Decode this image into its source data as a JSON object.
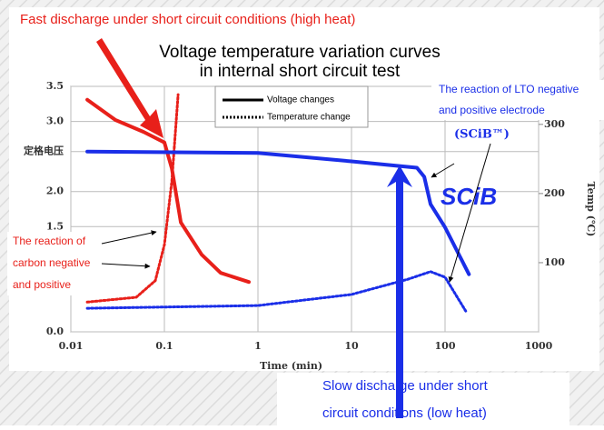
{
  "chart_data": {
    "type": "line",
    "title": [
      "Voltage temperature variation curves",
      "in internal short circuit test"
    ],
    "xlabel": "Time (min)",
    "y2label": "Temp (℃)",
    "xscale": "log",
    "xlim": [
      0.01,
      1000
    ],
    "xticks": [
      0.01,
      0.1,
      1,
      10,
      100,
      1000
    ],
    "ylim": [
      0,
      3.5
    ],
    "yticks": [
      {
        "value": 0,
        "label": "0.0"
      },
      1.5,
      {
        "value": 2,
        "label": "2.0"
      },
      {
        "value": 2.57,
        "label": "定格电压"
      },
      {
        "value": 3,
        "label": "3.0"
      },
      3.5
    ],
    "y2lim": [
      0,
      355
    ],
    "y2ticks": [
      100,
      200,
      300
    ],
    "grid": true,
    "legend": [
      {
        "label": "Voltage changes",
        "style": "solid"
      },
      {
        "label": "Temperature change",
        "style": "dotted"
      }
    ],
    "series": [
      {
        "color": "#e8201a",
        "style": "solid",
        "x": [
          0.015,
          0.03,
          0.06,
          0.1,
          0.12,
          0.15,
          0.25,
          0.4,
          0.8
        ],
        "values": [
          3.31,
          3.02,
          2.85,
          2.7,
          2.33,
          1.56,
          1.1,
          0.84,
          0.71
        ]
      },
      {
        "color": "#e8201a",
        "style": "dotted",
        "axis": "y2",
        "x": [
          0.015,
          0.05,
          0.08,
          0.1,
          0.12,
          0.14
        ],
        "values": [
          43,
          50,
          74,
          126,
          218,
          343
        ]
      },
      {
        "color": "#1a2ee8",
        "style": "solid",
        "x": [
          0.015,
          1,
          10,
          50,
          60,
          70,
          100,
          180
        ],
        "values": [
          2.57,
          2.55,
          2.43,
          2.34,
          2.21,
          1.82,
          1.49,
          0.82
        ]
      },
      {
        "color": "#1a2ee8",
        "style": "dotted",
        "axis": "y2",
        "x": [
          0.015,
          1,
          10,
          40,
          70,
          100,
          170
        ],
        "values": [
          34,
          38,
          54,
          76,
          87,
          79,
          28
        ]
      }
    ],
    "annotations": {
      "fast": "Fast discharge under short circuit conditions (high heat)",
      "lto": [
        "The reaction of LTO negative",
        "and positive electrode"
      ],
      "scib_tm": "(SCiB™)",
      "scib_logo": "SCiB",
      "carbon": [
        "The reaction of",
        "carbon negative",
        "and positive"
      ],
      "slow": [
        "Slow discharge under short",
        "circuit conditions (low heat)"
      ]
    }
  }
}
